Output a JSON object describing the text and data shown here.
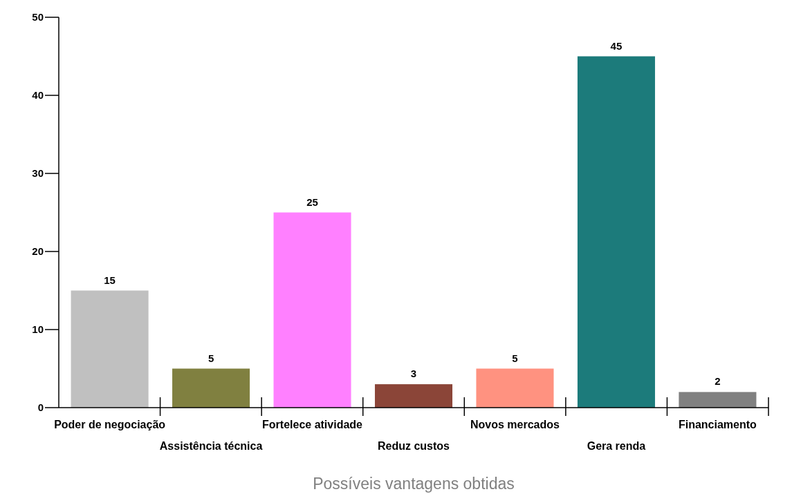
{
  "chart_data": {
    "type": "bar",
    "xlabel": "Possíveis vantagens obtidas",
    "categories": [
      "Poder de negociação",
      "Assistência técnica",
      "Fortelece atividade",
      "Reduz custos",
      "Novos mercados",
      "Gera renda",
      "Financiamento"
    ],
    "values": [
      15,
      5,
      25,
      3,
      5,
      45,
      2
    ],
    "colors": [
      "#c0c0c0",
      "#808040",
      "#ff80ff",
      "#8b4538",
      "#ff9280",
      "#1c7b7b",
      "#808080"
    ],
    "ylim": [
      0,
      50
    ],
    "yticks": [
      0,
      10,
      20,
      30,
      40,
      50
    ],
    "grid": false,
    "data_labels": true
  }
}
